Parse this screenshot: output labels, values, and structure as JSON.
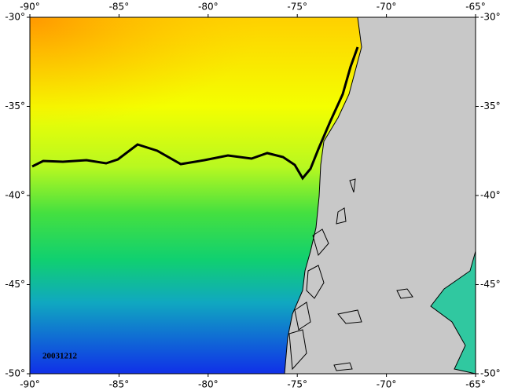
{
  "chart_data": {
    "type": "map",
    "xlim": [
      -90,
      -65
    ],
    "ylim": [
      -50,
      -30
    ],
    "xticks": [
      {
        "value": -90,
        "label": "-90°"
      },
      {
        "value": -85,
        "label": "-85°"
      },
      {
        "value": -80,
        "label": "-80°"
      },
      {
        "value": -75,
        "label": "-75°"
      },
      {
        "value": -70,
        "label": "-70°"
      },
      {
        "value": -65,
        "label": "-65°"
      }
    ],
    "yticks": [
      {
        "value": -30,
        "label": "-30°"
      },
      {
        "value": -35,
        "label": "-35°"
      },
      {
        "value": -40,
        "label": "-40°"
      },
      {
        "value": -45,
        "label": "-45°"
      },
      {
        "value": -50,
        "label": "-50°"
      }
    ],
    "annotation": "20031212"
  }
}
